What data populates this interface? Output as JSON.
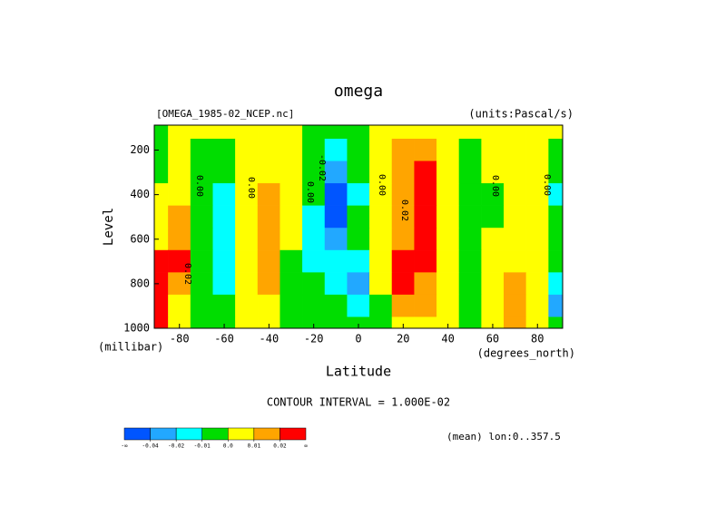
{
  "chart_data": {
    "type": "contour",
    "title": "omega",
    "subtitle_left": "[OMEGA_1985-02_NCEP.nc]",
    "subtitle_right": "(units:Pascal/s)",
    "y_label": "Level",
    "y_units": "(millibar)",
    "x_label": "Latitude",
    "x_units": "(degrees_north)",
    "contour_interval": "CONTOUR INTERVAL = 1.000E-02",
    "footnote": "(mean) lon:0..357.5",
    "x": [
      -90,
      -80,
      -70,
      -60,
      -50,
      -40,
      -30,
      -20,
      -10,
      0,
      10,
      20,
      30,
      40,
      50,
      60,
      70,
      80,
      90
    ],
    "y": [
      100,
      200,
      300,
      400,
      500,
      600,
      700,
      800,
      900,
      1000
    ],
    "z": [
      [
        -0.005,
        0.005,
        0.005,
        0.005,
        0.005,
        0.005,
        0.005,
        -0.005,
        -0.005,
        -0.005,
        0.005,
        0.005,
        0.005,
        0.005,
        0.005,
        0.005,
        0.005,
        0.005,
        0.005
      ],
      [
        -0.005,
        0.005,
        -0.005,
        -0.005,
        0.005,
        0.005,
        0.005,
        -0.005,
        -0.015,
        -0.005,
        0.005,
        0.015,
        0.015,
        0.005,
        -0.005,
        0.005,
        0.005,
        0.005,
        -0.005
      ],
      [
        -0.005,
        0.005,
        -0.005,
        -0.005,
        0.005,
        0.005,
        0.005,
        -0.005,
        -0.03,
        -0.005,
        0.005,
        0.015,
        0.03,
        0.005,
        -0.005,
        0.005,
        0.005,
        0.005,
        -0.005
      ],
      [
        0.005,
        0.005,
        -0.005,
        -0.015,
        0.005,
        0.015,
        0.005,
        -0.005,
        -0.05,
        -0.015,
        0.005,
        0.015,
        0.03,
        0.005,
        -0.005,
        -0.005,
        0.005,
        0.005,
        -0.015
      ],
      [
        0.005,
        0.015,
        -0.005,
        -0.015,
        0.005,
        0.015,
        0.005,
        -0.015,
        -0.05,
        -0.005,
        0.005,
        0.015,
        0.03,
        0.005,
        -0.005,
        -0.005,
        0.005,
        0.005,
        -0.005
      ],
      [
        0.005,
        0.015,
        -0.005,
        -0.015,
        0.005,
        0.015,
        0.005,
        -0.015,
        -0.03,
        -0.005,
        0.005,
        0.015,
        0.03,
        0.005,
        -0.005,
        0.005,
        0.005,
        0.005,
        -0.005
      ],
      [
        0.03,
        0.03,
        -0.005,
        -0.015,
        0.005,
        0.015,
        -0.005,
        -0.015,
        -0.015,
        -0.015,
        0.005,
        0.03,
        0.03,
        0.005,
        -0.005,
        0.005,
        0.005,
        0.005,
        -0.005
      ],
      [
        0.03,
        0.015,
        -0.005,
        -0.015,
        0.005,
        0.015,
        -0.005,
        -0.005,
        -0.015,
        -0.03,
        0.005,
        0.03,
        0.015,
        0.005,
        -0.005,
        0.005,
        0.015,
        0.005,
        -0.015
      ],
      [
        0.03,
        0.005,
        -0.005,
        -0.005,
        0.005,
        0.005,
        -0.005,
        -0.005,
        -0.005,
        -0.015,
        -0.005,
        0.015,
        0.015,
        0.005,
        -0.005,
        0.005,
        0.015,
        0.005,
        -0.03
      ],
      [
        0.03,
        0.005,
        -0.005,
        -0.005,
        0.005,
        0.005,
        -0.005,
        -0.005,
        -0.005,
        -0.005,
        -0.005,
        0.005,
        0.005,
        0.005,
        -0.005,
        0.005,
        0.015,
        0.005,
        -0.005
      ]
    ],
    "xlim": [
      -91.25,
      91.25
    ],
    "ylim": [
      1000,
      88
    ],
    "xticks": [
      -80,
      -60,
      -40,
      -20,
      0,
      20,
      40,
      60,
      80
    ],
    "yticks": [
      200,
      400,
      600,
      800,
      1000
    ],
    "levels": [
      -0.04,
      -0.02,
      -0.01,
      {
        "value": 0,
        "label": "0.0"
      },
      0.01,
      0.02
    ],
    "colorbar_ends": [
      "-∞",
      "∞"
    ],
    "colors": [
      "#0055ff",
      "#22a8ff",
      "#00ffff",
      "#00dd00",
      "#ffff00",
      "#ffa500",
      "#ff0000"
    ],
    "contour_labels": [
      "0.00",
      "0.00",
      "0.00",
      "0.00",
      "0.00",
      "0.00",
      "-0.02",
      "0.02",
      "0.02"
    ]
  }
}
